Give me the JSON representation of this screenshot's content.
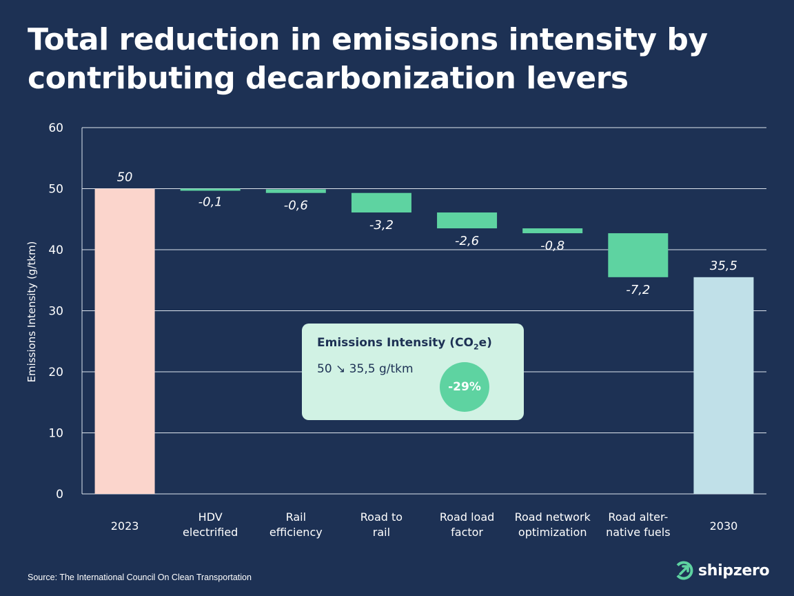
{
  "title": "Total reduction in emissions intensity by contributing decarbonization levers",
  "chart_data": {
    "type": "waterfall",
    "ylabel": "Emissions Intensity (g/tkm)",
    "ylim": [
      0,
      60
    ],
    "yticks": [
      0,
      10,
      20,
      30,
      40,
      50,
      60
    ],
    "grid": true,
    "steps": [
      {
        "label": [
          "2023"
        ],
        "kind": "total",
        "value": 50,
        "data_label": "50"
      },
      {
        "label": [
          "HDV",
          "electrified"
        ],
        "kind": "delta",
        "value": -0.1,
        "data_label": "-0,1"
      },
      {
        "label": [
          "Rail",
          "efficiency"
        ],
        "kind": "delta",
        "value": -0.6,
        "data_label": "-0,6"
      },
      {
        "label": [
          "Road to",
          "rail"
        ],
        "kind": "delta",
        "value": -3.2,
        "data_label": "-3,2"
      },
      {
        "label": [
          "Road load",
          "factor"
        ],
        "kind": "delta",
        "value": -2.6,
        "data_label": "-2,6"
      },
      {
        "label": [
          "Road network",
          "optimization"
        ],
        "kind": "delta",
        "value": -0.8,
        "data_label": "-0,8"
      },
      {
        "label": [
          "Road alter-",
          "native fuels"
        ],
        "kind": "delta",
        "value": -7.2,
        "data_label": "-7,2"
      },
      {
        "label": [
          "2030"
        ],
        "kind": "total",
        "value": 35.5,
        "data_label": "35,5"
      }
    ],
    "colors": {
      "start": "#fbd5cc",
      "delta": "#5ed3a1",
      "end": "#c0e0e8",
      "grid": "#dfe6ef"
    }
  },
  "info_box": {
    "title_main": "Emissions Intensity (CO",
    "title_sub": "2",
    "title_end": "e)",
    "value_text": "50 ↘ 35,5 g/tkm",
    "badge": "-29%"
  },
  "source": "Source: The International Council On Clean Transportation",
  "logo": {
    "text": "shipzero"
  }
}
